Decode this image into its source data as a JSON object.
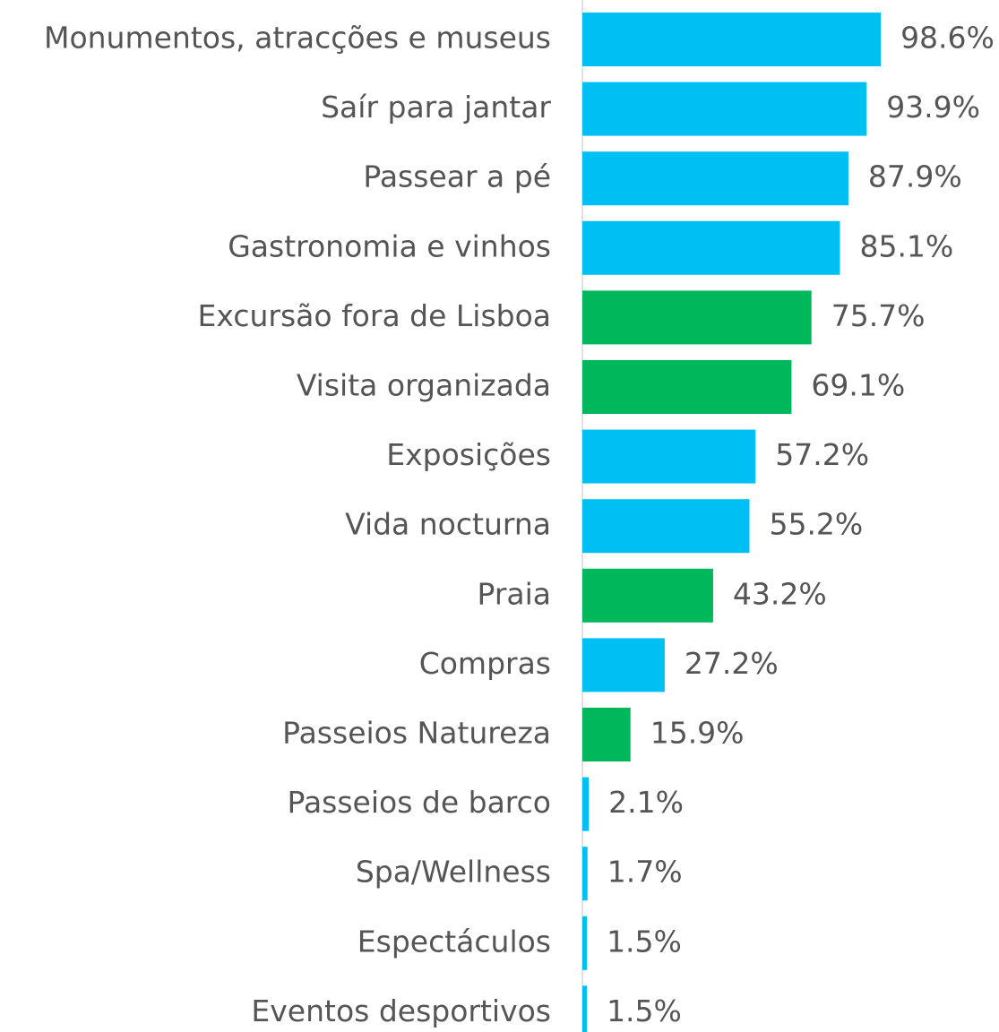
{
  "chart_data": {
    "type": "barh",
    "categories": [
      "Monumentos, atracções e museus",
      "Saír para jantar",
      "Passear a pé",
      "Gastronomia e vinhos",
      "Excursão fora de Lisboa",
      "Visita organizada",
      "Exposições",
      "Vida nocturna",
      "Praia",
      "Compras",
      "Passeios Natureza",
      "Passeios de barco",
      "Spa/Wellness",
      "Espectáculos",
      "Eventos desportivos"
    ],
    "values": [
      98.6,
      93.9,
      87.9,
      85.1,
      75.7,
      69.1,
      57.2,
      55.2,
      43.2,
      27.2,
      15.9,
      2.1,
      1.7,
      1.5,
      1.5
    ],
    "value_labels": [
      "98.6%",
      "93.9%",
      "87.9%",
      "85.1%",
      "75.7%",
      "69.1%",
      "57.2%",
      "55.2%",
      "43.2%",
      "27.2%",
      "15.9%",
      "2.1%",
      "1.7%",
      "1.5%",
      "1.5%"
    ],
    "colors": [
      "#00bff3",
      "#00bff3",
      "#00bff3",
      "#00bff3",
      "#00b85c",
      "#00b85c",
      "#00bff3",
      "#00bff3",
      "#00b85c",
      "#00bff3",
      "#00b85c",
      "#00bff3",
      "#00bff3",
      "#00bff3",
      "#00bff3"
    ]
  }
}
